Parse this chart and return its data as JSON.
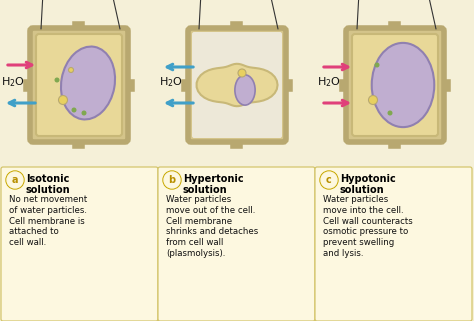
{
  "bg_color": "#f5f0d8",
  "cell_wall_color": "#d4c48a",
  "cell_wall_outline": "#b8a870",
  "cell_wall_lw": 4,
  "connector_color": "#c0b080",
  "cell_membrane_color": "#e8d898",
  "cell_membrane_outline": "#c8b878",
  "vacuole_color": "#c0aed0",
  "vacuole_outline": "#9080b0",
  "arrow_pink": "#e0407a",
  "arrow_blue": "#40a0c8",
  "label_color": "#111111",
  "box_bg": "#fdf8e0",
  "box_border": "#d0c060",
  "title_color": "#000000",
  "panels": [
    "a",
    "b",
    "c"
  ],
  "solution_titles": [
    "Isotonic\nsolution",
    "Hypertonic\nsolution",
    "Hypotonic\nsolution"
  ],
  "descriptions": [
    "No net movement\nof water particles.\nCell membrane is\nattached to\ncell wall.",
    "Water particles\nmove out of the cell.\nCell membrane\nshrinks and detaches\nfrom cell wall\n(plasmolysis).",
    "Water particles\nmove into the cell.\nCell wall counteracts\nosmotic pressure to\nprevent swelling\nand lysis."
  ]
}
